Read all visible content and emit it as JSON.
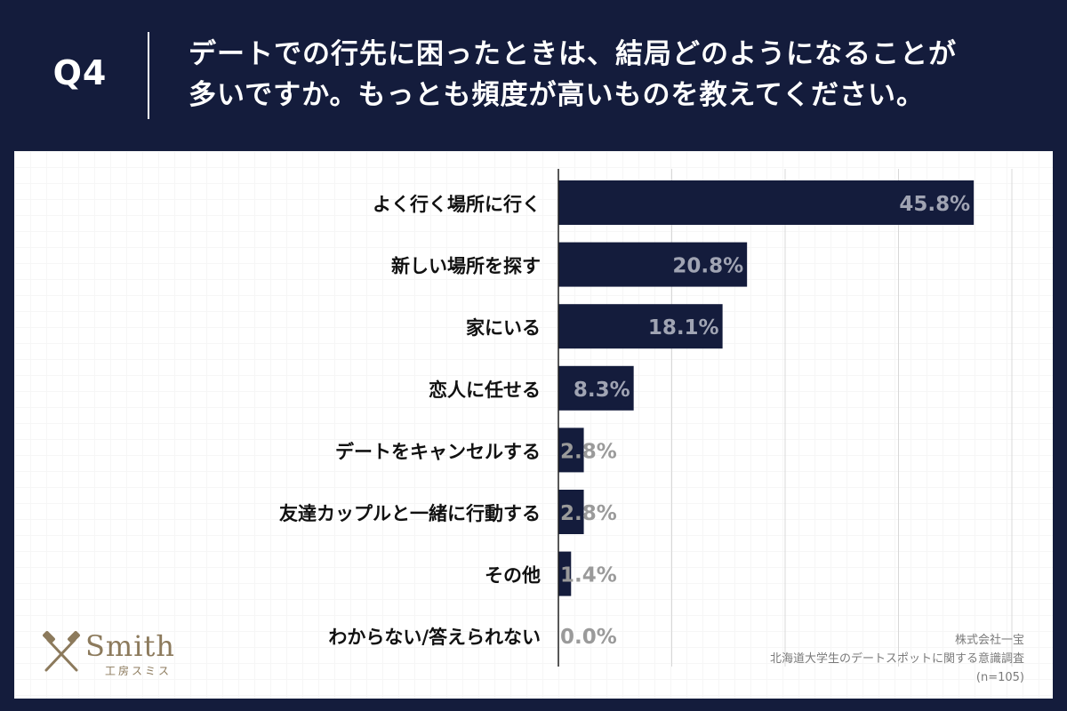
{
  "header": {
    "q_label": "Q4",
    "question_line1": "デートでの行先に困ったときは、結局どのようになることが",
    "question_line2": "多いですか。もっとも頻度が高いものを教えてください。"
  },
  "logo": {
    "wordmark": "Smith",
    "subtitle": "工房スミス",
    "color": "#8c7a5c"
  },
  "source": {
    "company": "株式会社一宝",
    "survey": "北海道大学生のデートスポットに関する意識調査",
    "sample": "(n=105)"
  },
  "colors": {
    "bar": "#141c3c",
    "label_inside": "#a0a4b3",
    "label_outside": "#9a9a9a",
    "category_text": "#111111"
  },
  "chart_data": {
    "type": "bar",
    "orientation": "horizontal",
    "categories": [
      "よく行く場所に行く",
      "新しい場所を探す",
      "家にいる",
      "恋人に任せる",
      "デートをキャンセルする",
      "友達カップルと一緒に行動する",
      "その他",
      "わからない/答えられない"
    ],
    "values": [
      45.8,
      20.8,
      18.1,
      8.3,
      2.8,
      2.8,
      1.4,
      0.0
    ],
    "labels": [
      "45.8%",
      "20.8%",
      "18.1%",
      "8.3%",
      "2.8%",
      "2.8%",
      "1.4%",
      "0.0%"
    ],
    "unit": "%",
    "xlim": [
      0,
      50
    ],
    "grid": true
  }
}
